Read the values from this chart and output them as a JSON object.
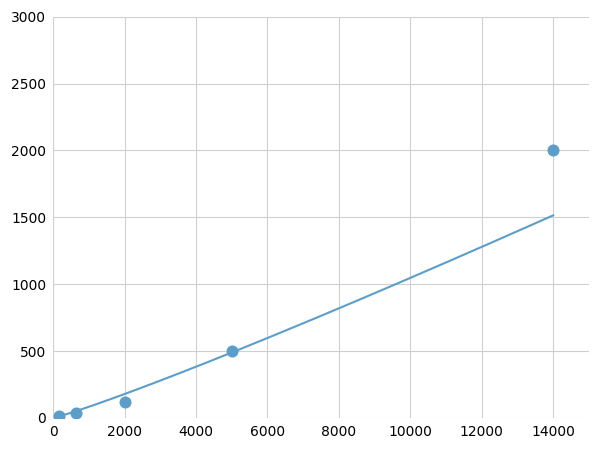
{
  "x_points": [
    156,
    625,
    2000,
    5000,
    14000
  ],
  "y_points": [
    15,
    40,
    120,
    500,
    2000
  ],
  "line_color": "#5b9ec9",
  "marker_color": "#5b9ec9",
  "marker_size": 5,
  "xlim": [
    0,
    15000
  ],
  "ylim": [
    0,
    3000
  ],
  "xticks": [
    0,
    2000,
    4000,
    6000,
    8000,
    10000,
    12000,
    14000
  ],
  "yticks": [
    0,
    500,
    1000,
    1500,
    2000,
    2500,
    3000
  ],
  "xtick_labels": [
    "0",
    "2000",
    "4000",
    "6000",
    "8000",
    "10000",
    "12000",
    "14000"
  ],
  "ytick_labels": [
    "0",
    "500",
    "1000",
    "1500",
    "2000",
    "2500",
    "3000"
  ],
  "grid_color": "#d0d0d0",
  "background_color": "#ffffff",
  "tick_fontsize": 10,
  "figsize": [
    6.0,
    4.5
  ],
  "dpi": 100
}
